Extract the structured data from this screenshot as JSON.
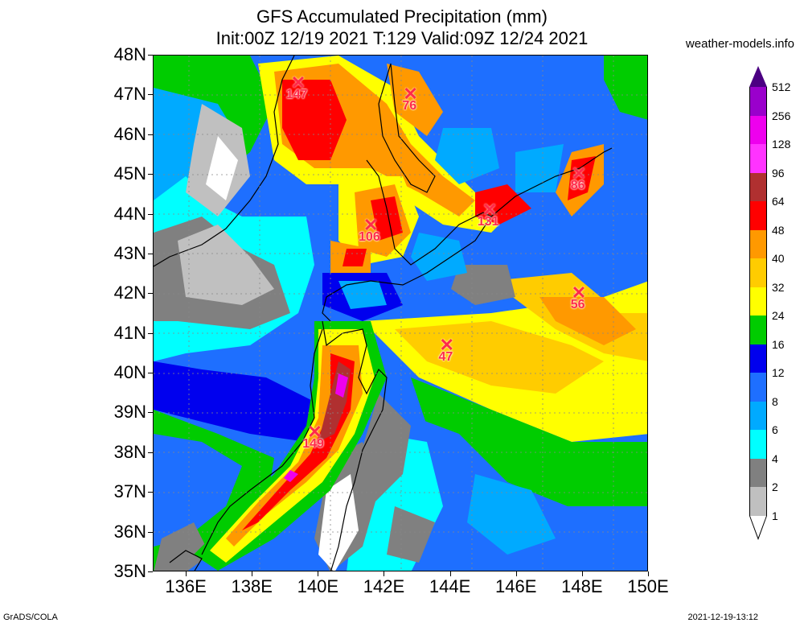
{
  "title_line1": "GFS Accumulated Precipitation (mm)",
  "title_line2": "Init:00Z 12/19 2021 T:129 Valid:09Z 12/24 2021",
  "site": "weather-models.info",
  "footer_left": "GrADS/COLA",
  "footer_right": "2021-12-19-13:12",
  "lat_labels": [
    "48N",
    "47N",
    "46N",
    "45N",
    "44N",
    "43N",
    "42N",
    "41N",
    "40N",
    "39N",
    "38N",
    "37N",
    "36N",
    "35N"
  ],
  "lon_labels": [
    "136E",
    "138E",
    "140E",
    "142E",
    "144E",
    "146E",
    "148E",
    "150E"
  ],
  "legend": {
    "labels": [
      "512",
      "256",
      "128",
      "96",
      "64",
      "48",
      "40",
      "32",
      "24",
      "16",
      "12",
      "8",
      "6",
      "4",
      "2",
      "1"
    ],
    "colors": [
      "#4b0082",
      "#9a00cc",
      "#ee00ee",
      "#ff33ff",
      "#b03030",
      "#ff0000",
      "#ff9900",
      "#ffcc00",
      "#ffff00",
      "#00cc00",
      "#0000ee",
      "#1e6fff",
      "#00aaff",
      "#00ffff",
      "#808080",
      "#c0c0c0",
      "#ffffff"
    ]
  },
  "markers": [
    {
      "value": "147",
      "lon": 139.4,
      "lat": 47.3
    },
    {
      "value": "76",
      "lon": 142.8,
      "lat": 47.0
    },
    {
      "value": "86",
      "lon": 147.9,
      "lat": 45.0
    },
    {
      "value": "131",
      "lon": 145.2,
      "lat": 44.1
    },
    {
      "value": "106",
      "lon": 141.6,
      "lat": 43.7
    },
    {
      "value": "56",
      "lon": 147.9,
      "lat": 42.0
    },
    {
      "value": "47",
      "lon": 143.9,
      "lat": 40.7
    },
    {
      "value": "149",
      "lon": 139.9,
      "lat": 38.5
    }
  ]
}
